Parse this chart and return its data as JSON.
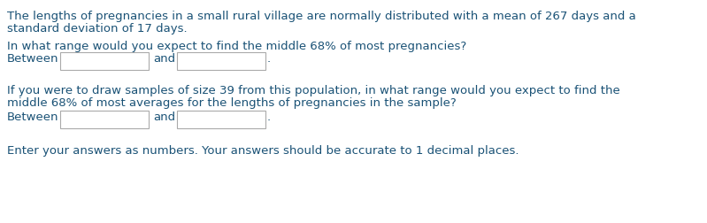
{
  "bg_color": "#ffffff",
  "text_color": "#1a5276",
  "line1": "The lengths of pregnancies in a small rural village are normally distributed with a mean of 267 days and a",
  "line2": "standard deviation of 17 days.",
  "q1": "In what range would you expect to find the middle 68% of most pregnancies?",
  "between_label": "Between",
  "and_label": "and",
  "period": ".",
  "q2_line1": "If you were to draw samples of size 39 from this population, in what range would you expect to find the",
  "q2_line2": "middle 68% of most averages for the lengths of pregnancies in the sample?",
  "footer": "Enter your answers as numbers. Your answers should be accurate to 1 decimal places.",
  "font_size": 9.5,
  "box_edge_color": "#aaaaaa",
  "box_face_color": "#ffffff"
}
